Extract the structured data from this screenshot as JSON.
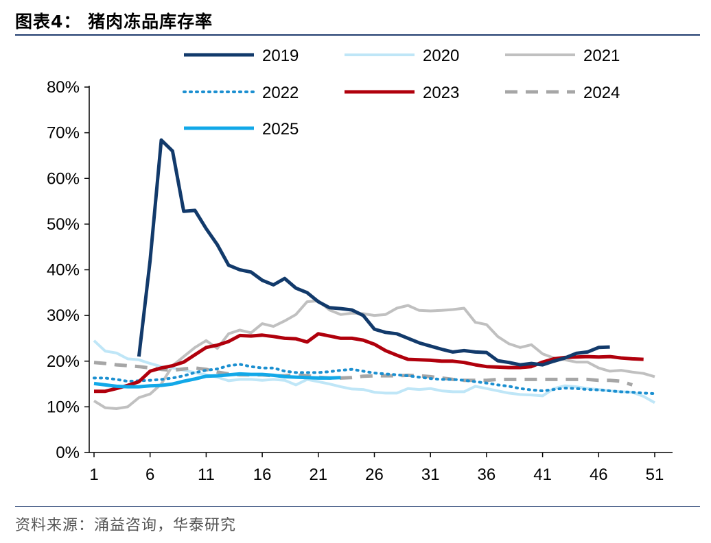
{
  "header": {
    "title": "图表4：  猪肉冻品库存率"
  },
  "footer": {
    "source": "资料来源：涌益咨询，华泰研究"
  },
  "chart_data": {
    "type": "line",
    "title": "猪肉冻品库存率",
    "xlabel": "",
    "ylabel": "",
    "xlim": [
      1,
      52
    ],
    "ylim": [
      0,
      0.8
    ],
    "x_ticks": [
      1,
      6,
      11,
      16,
      21,
      26,
      31,
      36,
      41,
      46,
      51
    ],
    "y_ticks": [
      0,
      0.1,
      0.2,
      0.3,
      0.4,
      0.5,
      0.6,
      0.7,
      0.8
    ],
    "y_tick_labels": [
      "0%",
      "10%",
      "20%",
      "30%",
      "40%",
      "50%",
      "60%",
      "70%",
      "80%"
    ],
    "legend_position": "top",
    "series": [
      {
        "name": "2019",
        "color": "#123a6b",
        "style": "solid",
        "width": 5,
        "x": [
          5,
          6,
          7,
          8,
          9,
          10,
          11,
          12,
          13,
          14,
          15,
          16,
          17,
          18,
          19,
          20,
          21,
          22,
          23,
          24,
          25,
          26,
          27,
          28,
          29,
          30,
          31,
          32,
          33,
          34,
          35,
          36,
          37,
          38,
          39,
          40,
          41,
          42,
          43,
          44,
          45,
          46,
          47
        ],
        "values": [
          0.21,
          0.42,
          0.684,
          0.66,
          0.528,
          0.53,
          0.49,
          0.455,
          0.41,
          0.4,
          0.395,
          0.377,
          0.367,
          0.381,
          0.36,
          0.35,
          0.33,
          0.317,
          0.315,
          0.312,
          0.3,
          0.27,
          0.263,
          0.26,
          0.25,
          0.24,
          0.233,
          0.226,
          0.22,
          0.223,
          0.22,
          0.219,
          0.201,
          0.197,
          0.192,
          0.195,
          0.192,
          0.2,
          0.207,
          0.217,
          0.22,
          0.23,
          0.231
        ]
      },
      {
        "name": "2020",
        "color": "#bfe6f7",
        "style": "solid",
        "width": 4,
        "x": [
          1,
          2,
          3,
          4,
          5,
          6,
          7,
          8,
          9,
          10,
          11,
          12,
          13,
          14,
          15,
          16,
          17,
          18,
          19,
          20,
          21,
          22,
          23,
          24,
          25,
          26,
          27,
          28,
          29,
          30,
          31,
          32,
          33,
          34,
          35,
          36,
          37,
          38,
          39,
          40,
          41,
          42,
          43,
          44,
          45,
          46,
          47,
          48,
          49,
          50,
          51
        ],
        "values": [
          0.245,
          0.222,
          0.218,
          0.205,
          0.203,
          0.195,
          0.188,
          0.185,
          0.18,
          0.175,
          0.17,
          0.165,
          0.157,
          0.16,
          0.16,
          0.158,
          0.16,
          0.158,
          0.148,
          0.16,
          0.155,
          0.15,
          0.144,
          0.139,
          0.138,
          0.132,
          0.13,
          0.13,
          0.14,
          0.138,
          0.14,
          0.135,
          0.133,
          0.133,
          0.145,
          0.14,
          0.135,
          0.13,
          0.127,
          0.126,
          0.124,
          0.14,
          0.146,
          0.144,
          0.14,
          0.138,
          0.135,
          0.133,
          0.132,
          0.123,
          0.109
        ]
      },
      {
        "name": "2021",
        "color": "#c0c0c0",
        "style": "solid",
        "width": 4,
        "x": [
          1,
          2,
          3,
          4,
          5,
          6,
          7,
          8,
          9,
          10,
          11,
          12,
          13,
          14,
          15,
          16,
          17,
          18,
          19,
          20,
          21,
          22,
          23,
          24,
          25,
          26,
          27,
          28,
          29,
          30,
          31,
          32,
          33,
          34,
          35,
          36,
          37,
          38,
          39,
          40,
          41,
          42,
          43,
          44,
          45,
          46,
          47,
          48,
          49,
          50,
          51
        ],
        "values": [
          0.113,
          0.098,
          0.096,
          0.1,
          0.12,
          0.128,
          0.15,
          0.19,
          0.21,
          0.23,
          0.245,
          0.228,
          0.26,
          0.268,
          0.262,
          0.282,
          0.276,
          0.288,
          0.302,
          0.33,
          0.332,
          0.312,
          0.302,
          0.305,
          0.304,
          0.3,
          0.302,
          0.316,
          0.322,
          0.311,
          0.31,
          0.311,
          0.313,
          0.316,
          0.285,
          0.28,
          0.254,
          0.238,
          0.23,
          0.236,
          0.216,
          0.207,
          0.203,
          0.198,
          0.198,
          0.185,
          0.178,
          0.18,
          0.176,
          0.173,
          0.166
        ]
      },
      {
        "name": "2022",
        "color": "#1b8fd0",
        "style": "dotted",
        "width": 4,
        "x": [
          1,
          2,
          3,
          4,
          5,
          6,
          7,
          8,
          9,
          10,
          11,
          12,
          13,
          14,
          15,
          16,
          17,
          18,
          19,
          20,
          21,
          22,
          23,
          24,
          25,
          26,
          27,
          28,
          29,
          30,
          31,
          32,
          33,
          34,
          35,
          36,
          37,
          38,
          39,
          40,
          41,
          42,
          43,
          44,
          45,
          46,
          47,
          48,
          49,
          50,
          51
        ],
        "values": [
          0.163,
          0.163,
          0.16,
          0.156,
          0.157,
          0.158,
          0.16,
          0.163,
          0.168,
          0.175,
          0.18,
          0.183,
          0.19,
          0.193,
          0.188,
          0.185,
          0.185,
          0.178,
          0.175,
          0.175,
          0.175,
          0.177,
          0.18,
          0.182,
          0.178,
          0.174,
          0.172,
          0.17,
          0.168,
          0.165,
          0.162,
          0.16,
          0.16,
          0.158,
          0.155,
          0.152,
          0.148,
          0.145,
          0.14,
          0.137,
          0.135,
          0.138,
          0.141,
          0.14,
          0.138,
          0.137,
          0.135,
          0.133,
          0.132,
          0.13,
          0.129
        ]
      },
      {
        "name": "2023",
        "color": "#b0000c",
        "style": "solid",
        "width": 5,
        "x": [
          1,
          2,
          3,
          4,
          5,
          6,
          7,
          8,
          9,
          10,
          11,
          12,
          13,
          14,
          15,
          16,
          17,
          18,
          19,
          20,
          21,
          22,
          23,
          24,
          25,
          26,
          27,
          28,
          29,
          30,
          31,
          32,
          33,
          34,
          35,
          36,
          37,
          38,
          39,
          40,
          41,
          42,
          43,
          44,
          45,
          46,
          47,
          48,
          49,
          50
        ],
        "values": [
          0.134,
          0.134,
          0.14,
          0.147,
          0.155,
          0.178,
          0.185,
          0.19,
          0.198,
          0.214,
          0.23,
          0.235,
          0.243,
          0.256,
          0.255,
          0.257,
          0.254,
          0.25,
          0.249,
          0.242,
          0.26,
          0.255,
          0.25,
          0.25,
          0.246,
          0.237,
          0.223,
          0.213,
          0.204,
          0.203,
          0.202,
          0.2,
          0.2,
          0.197,
          0.192,
          0.188,
          0.187,
          0.186,
          0.186,
          0.188,
          0.198,
          0.205,
          0.208,
          0.209,
          0.21,
          0.209,
          0.21,
          0.207,
          0.205,
          0.204
        ]
      },
      {
        "name": "2024",
        "color": "#a6a6a6",
        "style": "dashed",
        "width": 5,
        "x": [
          1,
          2,
          3,
          4,
          5,
          6,
          7,
          8,
          9,
          10,
          11,
          12,
          13,
          14,
          15,
          16,
          17,
          18,
          19,
          20,
          21,
          22,
          23,
          24,
          25,
          26,
          27,
          28,
          29,
          30,
          31,
          32,
          33,
          34,
          35,
          36,
          37,
          38,
          39,
          40,
          41,
          42,
          43,
          44,
          45,
          46,
          47,
          48,
          49
        ],
        "values": [
          0.197,
          0.195,
          0.192,
          0.19,
          0.188,
          0.185,
          0.182,
          0.18,
          0.183,
          0.185,
          0.182,
          0.176,
          0.172,
          0.17,
          0.17,
          0.17,
          0.168,
          0.168,
          0.17,
          0.168,
          0.165,
          0.163,
          0.163,
          0.164,
          0.167,
          0.168,
          0.168,
          0.168,
          0.169,
          0.168,
          0.166,
          0.163,
          0.16,
          0.158,
          0.158,
          0.158,
          0.16,
          0.16,
          0.16,
          0.16,
          0.16,
          0.16,
          0.16,
          0.16,
          0.16,
          0.158,
          0.158,
          0.156,
          0.148
        ]
      },
      {
        "name": "2025",
        "color": "#12a8e8",
        "style": "solid",
        "width": 5,
        "x": [
          1,
          2,
          3,
          4,
          5,
          6,
          7,
          8,
          9,
          10,
          11,
          12,
          13,
          14,
          15,
          16,
          17,
          18,
          19,
          20,
          21,
          22,
          23
        ],
        "values": [
          0.151,
          0.148,
          0.145,
          0.144,
          0.144,
          0.146,
          0.147,
          0.15,
          0.156,
          0.161,
          0.167,
          0.168,
          0.17,
          0.172,
          0.171,
          0.171,
          0.169,
          0.166,
          0.165,
          0.164,
          0.163,
          0.163,
          0.164
        ]
      }
    ]
  }
}
